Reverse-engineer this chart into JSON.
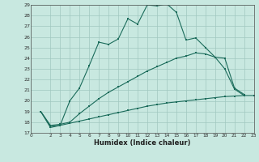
{
  "xlabel": "Humidex (Indice chaleur)",
  "bg_color": "#c8e8e0",
  "grid_color": "#a0c8bf",
  "line_color": "#1a6b5a",
  "xlim": [
    0,
    23
  ],
  "ylim": [
    17,
    29
  ],
  "xticks": [
    0,
    2,
    3,
    4,
    5,
    6,
    7,
    8,
    9,
    10,
    11,
    12,
    13,
    14,
    15,
    16,
    17,
    18,
    19,
    20,
    21,
    22,
    23
  ],
  "yticks": [
    17,
    18,
    19,
    20,
    21,
    22,
    23,
    24,
    25,
    26,
    27,
    28,
    29
  ],
  "line1_x": [
    1,
    2,
    3,
    4,
    5,
    6,
    7,
    8,
    9,
    10,
    11,
    12,
    13,
    14,
    15,
    16,
    17,
    18,
    19,
    20,
    21,
    22
  ],
  "line1_y": [
    19.0,
    17.5,
    17.7,
    20.0,
    21.2,
    23.3,
    25.5,
    25.3,
    25.8,
    27.7,
    27.2,
    29.0,
    28.9,
    29.1,
    28.3,
    25.7,
    25.9,
    25.0,
    24.1,
    23.0,
    21.1,
    20.5
  ],
  "line2_x": [
    1,
    2,
    3,
    4,
    5,
    6,
    7,
    8,
    9,
    10,
    11,
    12,
    13,
    14,
    15,
    16,
    17,
    18,
    19,
    20,
    21,
    22
  ],
  "line2_y": [
    19.0,
    17.7,
    17.8,
    18.0,
    18.8,
    19.5,
    20.2,
    20.8,
    21.3,
    21.8,
    22.3,
    22.8,
    23.2,
    23.6,
    24.0,
    24.2,
    24.5,
    24.4,
    24.1,
    24.0,
    21.2,
    20.6
  ],
  "line3_x": [
    1,
    2,
    3,
    4,
    5,
    6,
    7,
    8,
    9,
    10,
    11,
    12,
    13,
    14,
    15,
    16,
    17,
    18,
    19,
    20,
    21,
    22,
    23
  ],
  "line3_y": [
    19.0,
    17.6,
    17.7,
    17.9,
    18.1,
    18.3,
    18.5,
    18.7,
    18.9,
    19.1,
    19.3,
    19.5,
    19.65,
    19.8,
    19.9,
    20.0,
    20.1,
    20.2,
    20.3,
    20.4,
    20.45,
    20.5,
    20.5
  ]
}
